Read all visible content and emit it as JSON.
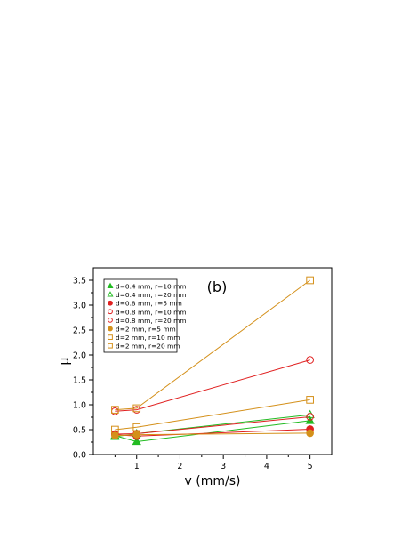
{
  "chart_data": {
    "type": "scatter",
    "panel_label": "(b)",
    "xlabel": "v (mm/s)",
    "ylabel": "μ",
    "xlim": [
      0,
      5.5
    ],
    "ylim": [
      0,
      3.75
    ],
    "xticks": [
      "1",
      "2",
      "3",
      "4",
      "5"
    ],
    "yticks": [
      "0.0",
      "0.5",
      "1.0",
      "1.5",
      "2.0",
      "2.5",
      "3.0",
      "3.5"
    ],
    "grid": false,
    "legend_position": "top-left",
    "x": [
      0.5,
      1,
      5
    ],
    "series": [
      {
        "name": "d=0.4 mm, r=10 mm",
        "values": [
          0.38,
          0.26,
          0.68
        ],
        "color": "#22bb22",
        "marker": "triangle",
        "filled": true
      },
      {
        "name": "d=0.4 mm, r=20 mm",
        "values": [
          0.36,
          0.42,
          0.8
        ],
        "color": "#22bb22",
        "marker": "triangle",
        "filled": false
      },
      {
        "name": "d=0.8 mm, r=5 mm",
        "values": [
          0.4,
          0.37,
          0.51
        ],
        "color": "#e02020",
        "marker": "circle",
        "filled": true
      },
      {
        "name": "d=0.8 mm, r=10 mm",
        "values": [
          0.87,
          0.9,
          1.9
        ],
        "color": "#e02020",
        "marker": "circle",
        "filled": false
      },
      {
        "name": "d=0.8 mm, r=20 mm",
        "values": [
          0.41,
          0.42,
          0.76
        ],
        "color": "#e02020",
        "marker": "circle",
        "filled": false
      },
      {
        "name": "d=2 mm, r=5 mm",
        "values": [
          0.38,
          0.4,
          0.43
        ],
        "color": "#d4901a",
        "marker": "circle",
        "filled": true
      },
      {
        "name": "d=2 mm, r=10 mm",
        "values": [
          0.5,
          0.55,
          1.1
        ],
        "color": "#d4901a",
        "marker": "square",
        "filled": false
      },
      {
        "name": "d=2 mm, r=20 mm",
        "values": [
          0.9,
          0.93,
          3.5
        ],
        "color": "#d4901a",
        "marker": "square",
        "filled": false
      }
    ]
  }
}
